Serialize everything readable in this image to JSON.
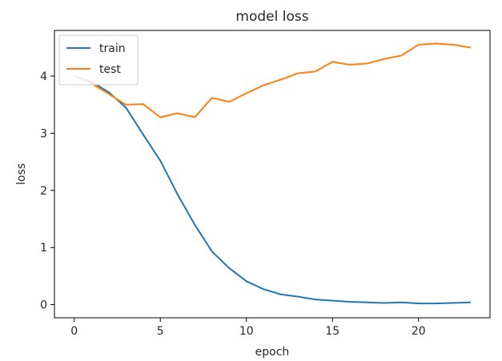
{
  "chart_data": {
    "type": "line",
    "title": "model loss",
    "xlabel": "epoch",
    "ylabel": "loss",
    "x": [
      0,
      1,
      2,
      3,
      4,
      5,
      6,
      7,
      8,
      9,
      10,
      11,
      12,
      13,
      14,
      15,
      16,
      17,
      18,
      19,
      20,
      21,
      22,
      23
    ],
    "xlim": [
      -1.15,
      24.15
    ],
    "ylim": [
      -0.23,
      4.8
    ],
    "xticks": [
      0,
      5,
      10,
      15,
      20
    ],
    "xtick_labels": [
      "0",
      "5",
      "10",
      "15",
      "20"
    ],
    "yticks": [
      0,
      1,
      2,
      3,
      4
    ],
    "ytick_labels": [
      "0",
      "1",
      "2",
      "3",
      "4"
    ],
    "grid": false,
    "legend_position": "top-left",
    "series": [
      {
        "name": "train",
        "color": "#1f77b4",
        "values": [
          4.0,
          3.9,
          3.72,
          3.45,
          2.98,
          2.52,
          1.93,
          1.4,
          0.93,
          0.64,
          0.41,
          0.27,
          0.18,
          0.14,
          0.09,
          0.07,
          0.05,
          0.04,
          0.03,
          0.04,
          0.02,
          0.02,
          0.03,
          0.04
        ]
      },
      {
        "name": "test",
        "color": "#ff7f0e",
        "values": [
          4.0,
          3.87,
          3.69,
          3.5,
          3.51,
          3.28,
          3.35,
          3.28,
          3.62,
          3.55,
          3.7,
          3.84,
          3.94,
          4.05,
          4.08,
          4.25,
          4.2,
          4.22,
          4.3,
          4.36,
          4.55,
          4.57,
          4.55,
          4.5
        ]
      }
    ]
  }
}
